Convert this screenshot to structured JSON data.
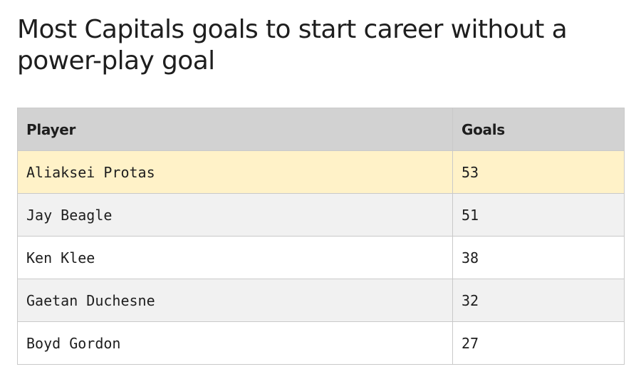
{
  "title": "Most Capitals goals to start career without a power-play goal",
  "chart_data": {
    "type": "table",
    "title": "Most Capitals goals to start career without a power-play goal",
    "columns": [
      "Player",
      "Goals"
    ],
    "rows": [
      {
        "player": "Aliaksei Protas",
        "goals": 53,
        "highlighted": true
      },
      {
        "player": "Jay Beagle",
        "goals": 51,
        "highlighted": false
      },
      {
        "player": "Ken Klee",
        "goals": 38,
        "highlighted": false
      },
      {
        "player": "Gaetan Duchesne",
        "goals": 32,
        "highlighted": false
      },
      {
        "player": "Boyd Gordon",
        "goals": 27,
        "highlighted": false
      }
    ]
  },
  "colors": {
    "header_bg": "#d2d2d2",
    "highlight_bg": "#fff2c8",
    "stripe_bg": "#f1f1f1",
    "border": "#c9c9c9"
  }
}
